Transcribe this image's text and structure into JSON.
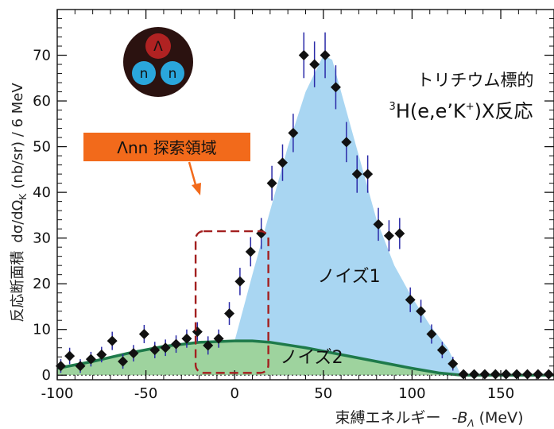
{
  "chart_data": {
    "type": "scatter",
    "xlabel_text": "束縛エネルギー",
    "xlabel_var": "-B",
    "xlabel_sub": "Λ",
    "xlabel_unit": "(MeV)",
    "ylabel_prefix": "反応断面積",
    "ylabel_formula": "dσ/dΩ",
    "ylabel_sub": "K",
    "ylabel_unit": "(nb/sr) / 6 MeV",
    "xlim": [
      -100,
      180
    ],
    "ylim": [
      -1,
      80
    ],
    "x_ticks": [
      -100,
      -50,
      0,
      50,
      100,
      150
    ],
    "y_ticks": [
      0,
      10,
      20,
      30,
      40,
      50,
      60,
      70
    ],
    "grid": false,
    "series": [
      {
        "kind": "data",
        "color": "#111111",
        "errbar_color": "#2a2aa8",
        "points": [
          {
            "x": -98,
            "y": 2.0,
            "e": 1.5
          },
          {
            "x": -93,
            "y": 4.2,
            "e": 1.8
          },
          {
            "x": -87,
            "y": 2.0,
            "e": 1.5
          },
          {
            "x": -81,
            "y": 3.5,
            "e": 1.6
          },
          {
            "x": -75,
            "y": 4.5,
            "e": 1.7
          },
          {
            "x": -69,
            "y": 7.5,
            "e": 2.0
          },
          {
            "x": -63,
            "y": 3.0,
            "e": 1.6
          },
          {
            "x": -57,
            "y": 4.8,
            "e": 1.8
          },
          {
            "x": -51,
            "y": 9.0,
            "e": 2.0
          },
          {
            "x": -45,
            "y": 5.5,
            "e": 1.8
          },
          {
            "x": -39,
            "y": 6.0,
            "e": 1.8
          },
          {
            "x": -33,
            "y": 6.8,
            "e": 1.9
          },
          {
            "x": -27,
            "y": 8.0,
            "e": 2.0
          },
          {
            "x": -21,
            "y": 9.5,
            "e": 2.1
          },
          {
            "x": -15,
            "y": 6.5,
            "e": 2.0
          },
          {
            "x": -9,
            "y": 8.0,
            "e": 2.0
          },
          {
            "x": -3,
            "y": 13.5,
            "e": 2.5
          },
          {
            "x": 3,
            "y": 20.5,
            "e": 3.0
          },
          {
            "x": 9,
            "y": 27.0,
            "e": 3.2
          },
          {
            "x": 15,
            "y": 31.0,
            "e": 3.4
          },
          {
            "x": 21,
            "y": 42.0,
            "e": 3.8
          },
          {
            "x": 27,
            "y": 46.5,
            "e": 4.0
          },
          {
            "x": 33,
            "y": 53.0,
            "e": 4.2
          },
          {
            "x": 39,
            "y": 70.0,
            "e": 5.0
          },
          {
            "x": 45,
            "y": 68.0,
            "e": 5.0
          },
          {
            "x": 51,
            "y": 70.0,
            "e": 5.0
          },
          {
            "x": 57,
            "y": 63.0,
            "e": 4.8
          },
          {
            "x": 63,
            "y": 51.0,
            "e": 4.4
          },
          {
            "x": 69,
            "y": 44.0,
            "e": 4.1
          },
          {
            "x": 75,
            "y": 44.0,
            "e": 4.1
          },
          {
            "x": 81,
            "y": 33.0,
            "e": 3.6
          },
          {
            "x": 87,
            "y": 30.5,
            "e": 3.4
          },
          {
            "x": 93,
            "y": 31.0,
            "e": 3.4
          },
          {
            "x": 99,
            "y": 16.5,
            "e": 2.7
          },
          {
            "x": 105,
            "y": 14.0,
            "e": 2.5
          },
          {
            "x": 111,
            "y": 9.0,
            "e": 2.1
          },
          {
            "x": 117,
            "y": 5.5,
            "e": 1.8
          },
          {
            "x": 123,
            "y": 2.5,
            "e": 1.5
          },
          {
            "x": 129,
            "y": 0.2,
            "e": 0.6
          },
          {
            "x": 135,
            "y": 0.2,
            "e": 0.6
          },
          {
            "x": 141,
            "y": 0.2,
            "e": 0.6
          },
          {
            "x": 147,
            "y": 0.2,
            "e": 0.6
          },
          {
            "x": 153,
            "y": 0.2,
            "e": 0.6
          },
          {
            "x": 159,
            "y": 0.2,
            "e": 0.6
          },
          {
            "x": 165,
            "y": 0.2,
            "e": 0.6
          },
          {
            "x": 171,
            "y": 0.2,
            "e": 0.6
          },
          {
            "x": 177,
            "y": 0.2,
            "e": 0.6
          }
        ]
      },
      {
        "name": "ノイズ1",
        "kind": "area",
        "color": "#a9d6f2",
        "x": [
          0,
          10,
          20,
          30,
          40,
          50,
          55,
          60,
          70,
          80,
          90,
          100,
          110,
          120,
          127
        ],
        "y": [
          7.5,
          22,
          36,
          50,
          62,
          70,
          69,
          62,
          48,
          34,
          24,
          17,
          11,
          6,
          0.5
        ]
      },
      {
        "name": "ノイズ2",
        "kind": "area",
        "color": "#9ed39e",
        "line_color": "#1e7a4a",
        "x": [
          -100,
          -80,
          -60,
          -40,
          -20,
          0,
          10,
          20,
          40,
          60,
          80,
          100,
          115,
          128
        ],
        "y": [
          1.5,
          3.0,
          4.8,
          6.3,
          7.2,
          7.5,
          7.5,
          7.2,
          6.0,
          4.5,
          3.0,
          1.5,
          0.5,
          0.0
        ]
      }
    ],
    "annotations": {
      "target_line1": "トリチウム標的",
      "target_line2_pre": "H(e,e’K",
      "target_line2_sup_mass": "3",
      "target_line2_sup_plus": "+",
      "target_line2_post": ")X反応",
      "search_label": "Λnn 探索領域",
      "search_label_bg": "#f26a1b",
      "search_region_xrange": [
        -22,
        19
      ],
      "search_region_yrange": [
        0.5,
        31.5
      ],
      "noise1_label": "ノイズ1",
      "noise2_label": "ノイズ2",
      "nucleus_lambda": "Λ",
      "nucleus_n1": "n",
      "nucleus_n2": "n"
    }
  }
}
